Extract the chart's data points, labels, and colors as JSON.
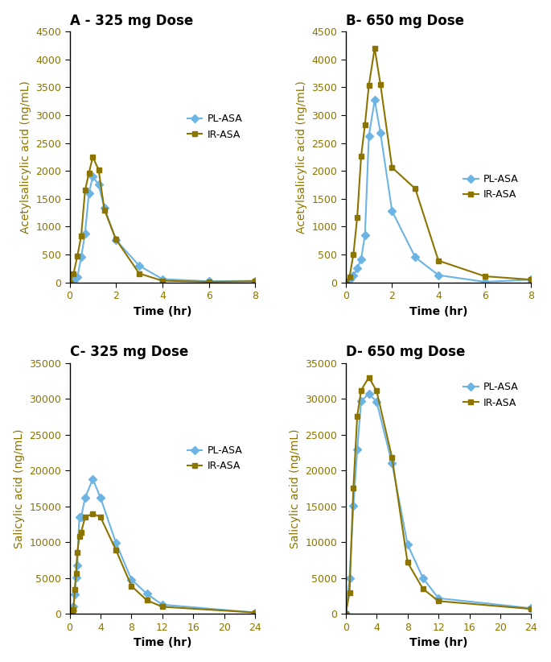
{
  "panel_A": {
    "title": "A - 325 mg Dose",
    "xlabel": "Time (hr)",
    "ylabel": "Acetylsalicylic acid (ng/mL)",
    "xlim": [
      0,
      8
    ],
    "ylim": [
      0,
      4500
    ],
    "xticks": [
      0,
      2,
      4,
      6,
      8
    ],
    "yticks": [
      0,
      500,
      1000,
      1500,
      2000,
      2500,
      3000,
      3500,
      4000,
      4500
    ],
    "pl_asa_x": [
      0,
      0.167,
      0.333,
      0.5,
      0.667,
      0.833,
      1.0,
      1.25,
      1.5,
      2.0,
      3.0,
      4.0,
      6.0,
      8.0
    ],
    "pl_asa_y": [
      0,
      30,
      90,
      450,
      880,
      1600,
      1900,
      1750,
      1340,
      760,
      300,
      60,
      20,
      30
    ],
    "ir_asa_x": [
      0,
      0.167,
      0.333,
      0.5,
      0.667,
      0.833,
      1.0,
      1.25,
      1.5,
      2.0,
      3.0,
      4.0,
      6.0,
      8.0
    ],
    "ir_asa_y": [
      0,
      150,
      470,
      830,
      1650,
      1960,
      2250,
      2020,
      1300,
      770,
      160,
      30,
      10,
      20
    ]
  },
  "panel_B": {
    "title": "B- 650 mg Dose",
    "xlabel": "Time (hr)",
    "ylabel": "Acetylsalicylic acid (ng/mL)",
    "xlim": [
      0,
      8
    ],
    "ylim": [
      0,
      4500
    ],
    "xticks": [
      0,
      2,
      4,
      6,
      8
    ],
    "yticks": [
      0,
      500,
      1000,
      1500,
      2000,
      2500,
      3000,
      3500,
      4000,
      4500
    ],
    "pl_asa_x": [
      0,
      0.167,
      0.333,
      0.5,
      0.667,
      0.833,
      1.0,
      1.25,
      1.5,
      2.0,
      3.0,
      4.0,
      6.0,
      8.0
    ],
    "pl_asa_y": [
      0,
      50,
      120,
      250,
      420,
      850,
      2620,
      3270,
      2680,
      1280,
      450,
      130,
      10,
      50
    ],
    "ir_asa_x": [
      0,
      0.167,
      0.333,
      0.5,
      0.667,
      0.833,
      1.0,
      1.25,
      1.5,
      2.0,
      3.0,
      4.0,
      6.0,
      8.0
    ],
    "ir_asa_y": [
      0,
      100,
      500,
      1170,
      2260,
      2830,
      3530,
      4200,
      3550,
      2060,
      1680,
      390,
      110,
      50
    ]
  },
  "panel_C": {
    "title": "C- 325 mg Dose",
    "xlabel": "Time (hr)",
    "ylabel": "Salicylic acid (ng/mL)",
    "xlim": [
      0,
      24
    ],
    "ylim": [
      0,
      35000
    ],
    "xticks": [
      0,
      4,
      8,
      12,
      16,
      20,
      24
    ],
    "yticks": [
      0,
      5000,
      10000,
      15000,
      20000,
      25000,
      30000,
      35000
    ],
    "pl_asa_x": [
      0,
      0.167,
      0.333,
      0.5,
      0.667,
      0.833,
      1.0,
      1.25,
      1.5,
      2.0,
      3.0,
      4.0,
      6.0,
      8.0,
      10.0,
      12.0,
      24.0
    ],
    "pl_asa_y": [
      0,
      200,
      500,
      1000,
      2700,
      5100,
      6800,
      13500,
      13500,
      16200,
      18800,
      16200,
      9900,
      4800,
      2800,
      1300,
      200
    ],
    "ir_asa_x": [
      0,
      0.167,
      0.333,
      0.5,
      0.667,
      0.833,
      1.0,
      1.25,
      1.5,
      2.0,
      3.0,
      4.0,
      6.0,
      8.0,
      10.0,
      12.0,
      24.0
    ],
    "ir_asa_y": [
      0,
      100,
      300,
      600,
      3400,
      5600,
      8600,
      10800,
      11400,
      13500,
      14000,
      13500,
      8900,
      3900,
      1900,
      1000,
      200
    ]
  },
  "panel_D": {
    "title": "D- 650 mg Dose",
    "xlabel": "Time (hr)",
    "ylabel": "Salicylic acid (ng/mL)",
    "xlim": [
      0,
      24
    ],
    "ylim": [
      0,
      35000
    ],
    "xticks": [
      0,
      4,
      8,
      12,
      16,
      20,
      24
    ],
    "yticks": [
      0,
      5000,
      10000,
      15000,
      20000,
      25000,
      30000,
      35000
    ],
    "pl_asa_x": [
      0,
      0.5,
      1.0,
      1.5,
      2.0,
      3.0,
      4.0,
      6.0,
      8.0,
      10.0,
      12.0,
      24.0
    ],
    "pl_asa_y": [
      0,
      5000,
      15100,
      23000,
      29700,
      30700,
      29600,
      21000,
      9700,
      5000,
      2200,
      800
    ],
    "ir_asa_x": [
      0,
      0.5,
      1.0,
      1.5,
      2.0,
      3.0,
      4.0,
      6.0,
      8.0,
      10.0,
      12.0,
      24.0
    ],
    "ir_asa_y": [
      0,
      3000,
      17600,
      27600,
      31200,
      33000,
      31100,
      21800,
      7200,
      3500,
      1800,
      700
    ]
  },
  "pl_asa_color": "#6CB4E4",
  "ir_asa_color": "#8B7500",
  "pl_asa_marker": "D",
  "ir_asa_marker": "s",
  "marker_size": 5,
  "line_width": 1.5,
  "title_fontsize": 12,
  "label_fontsize": 10,
  "tick_fontsize": 9,
  "legend_fontsize": 9,
  "axis_color": "#8B7500"
}
